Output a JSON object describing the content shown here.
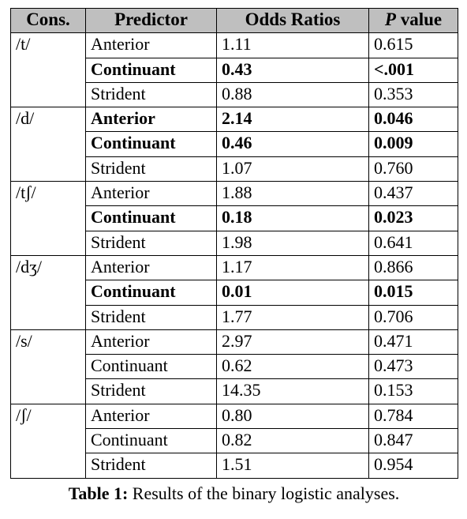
{
  "table": {
    "headers": {
      "cons": "Cons.",
      "predictor": "Predictor",
      "odds": "Odds Ratios",
      "p_italic": "P",
      "p_rest": " value"
    },
    "rows": [
      {
        "cons": "/t/",
        "predictor": "Anterior",
        "odds": "1.11",
        "p": "0.615",
        "bold": false
      },
      {
        "cons": "",
        "predictor": "Continuant",
        "odds": "0.43",
        "p": "<.001",
        "bold": true
      },
      {
        "cons": "",
        "predictor": "Strident",
        "odds": "0.88",
        "p": "0.353",
        "bold": false
      },
      {
        "cons": "/d/",
        "predictor": "Anterior",
        "odds": "2.14",
        "p": "0.046",
        "bold": true
      },
      {
        "cons": "",
        "predictor": "Continuant",
        "odds": "0.46",
        "p": "0.009",
        "bold": true
      },
      {
        "cons": "",
        "predictor": "Strident",
        "odds": "1.07",
        "p": "0.760",
        "bold": false
      },
      {
        "cons": "/tʃ/",
        "predictor": "Anterior",
        "odds": "1.88",
        "p": "0.437",
        "bold": false
      },
      {
        "cons": "",
        "predictor": "Continuant",
        "odds": "0.18",
        "p": "0.023",
        "bold": true
      },
      {
        "cons": "",
        "predictor": "Strident",
        "odds": "1.98",
        "p": "0.641",
        "bold": false
      },
      {
        "cons": "/dʒ/",
        "predictor": "Anterior",
        "odds": "1.17",
        "p": "0.866",
        "bold": false
      },
      {
        "cons": "",
        "predictor": "Continuant",
        "odds": "0.01",
        "p": "0.015",
        "bold": true
      },
      {
        "cons": "",
        "predictor": "Strident",
        "odds": "1.77",
        "p": "0.706",
        "bold": false
      },
      {
        "cons": "/s/",
        "predictor": "Anterior",
        "odds": "2.97",
        "p": "0.471",
        "bold": false
      },
      {
        "cons": "",
        "predictor": "Continuant",
        "odds": "0.62",
        "p": "0.473",
        "bold": false
      },
      {
        "cons": "",
        "predictor": "Strident",
        "odds": "14.35",
        "p": "0.153",
        "bold": false
      },
      {
        "cons": "/ʃ/",
        "predictor": "Anterior",
        "odds": "0.80",
        "p": "0.784",
        "bold": false
      },
      {
        "cons": "",
        "predictor": "Continuant",
        "odds": "0.82",
        "p": "0.847",
        "bold": false
      },
      {
        "cons": "",
        "predictor": "Strident",
        "odds": "1.51",
        "p": "0.954",
        "bold": false
      }
    ]
  },
  "caption": {
    "label": "Table 1:",
    "text": " Results of the binary logistic analyses."
  }
}
